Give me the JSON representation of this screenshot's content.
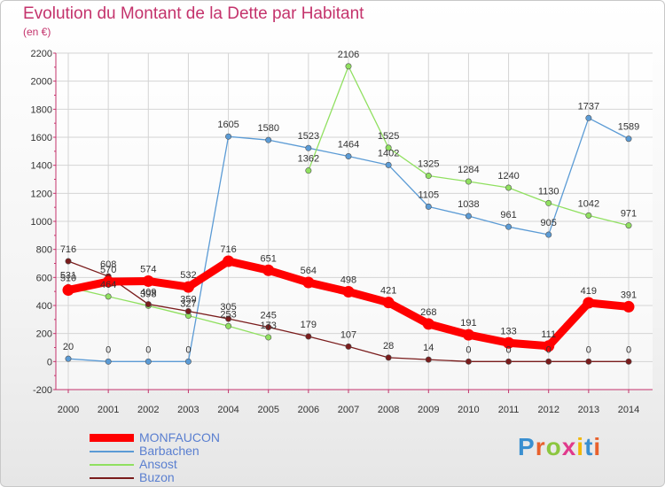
{
  "title": "Evolution du Montant de la Dette par Habitant",
  "subtitle": "(en €)",
  "brand": {
    "text": "Proxiti",
    "letter_colors": [
      "#3a8fd0",
      "#e8612c",
      "#8cc63f",
      "#e03a8c",
      "#f2b705",
      "#3a8fd0",
      "#e8612c"
    ]
  },
  "chart_data": {
    "type": "line",
    "x": [
      "2000",
      "2001",
      "2002",
      "2003",
      "2004",
      "2005",
      "2006",
      "2007",
      "2008",
      "2009",
      "2010",
      "2011",
      "2012",
      "2013",
      "2014"
    ],
    "ylim": [
      -200,
      2200
    ],
    "yticks": [
      -200,
      0,
      200,
      400,
      600,
      800,
      1000,
      1200,
      1400,
      1600,
      1800,
      2000,
      2200
    ],
    "grid": true,
    "legend_position": "bottom-left",
    "series": [
      {
        "name": "MONFAUCON",
        "color": "#ff0000",
        "emphasis": true,
        "values": [
          510,
          570,
          574,
          532,
          716,
          651,
          564,
          498,
          421,
          268,
          191,
          133,
          111,
          419,
          391
        ],
        "labels": [
          "510",
          "570",
          "574",
          "532",
          "716",
          "651",
          "564",
          "498",
          "421",
          "268",
          "191",
          "133",
          "111",
          "419",
          "391"
        ]
      },
      {
        "name": "Barbachen",
        "color": "#5b9bd5",
        "values": [
          20,
          0,
          0,
          0,
          1605,
          1580,
          1523,
          1464,
          1402,
          1105,
          1038,
          961,
          905,
          1737,
          1589
        ],
        "labels": [
          "20",
          "0",
          "0",
          "0",
          "1605",
          "1580",
          "1523",
          "1464",
          "1402",
          "1105",
          "1038",
          "961",
          "905",
          "1737",
          "1589"
        ]
      },
      {
        "name": "Ansost",
        "color": "#90e060",
        "values": [
          531,
          464,
          398,
          327,
          253,
          173,
          1362,
          2106,
          1525,
          1325,
          1284,
          1240,
          1130,
          1042,
          971
        ],
        "labels": [
          "531",
          "464",
          "398",
          "327",
          "253",
          "173",
          "1362",
          "2106",
          "1525",
          "1325",
          "1284",
          "1240",
          "1130",
          "1042",
          "971"
        ]
      },
      {
        "name": "Buzon",
        "color": "#7a1c1c",
        "values": [
          716,
          608,
          409,
          359,
          305,
          245,
          179,
          107,
          28,
          14,
          0,
          0,
          0,
          0,
          0
        ],
        "labels": [
          "716",
          "608",
          "409",
          "359",
          "305",
          "245",
          "179",
          "107",
          "28",
          "14",
          "0",
          "0",
          "0",
          "0",
          "0"
        ]
      }
    ]
  }
}
